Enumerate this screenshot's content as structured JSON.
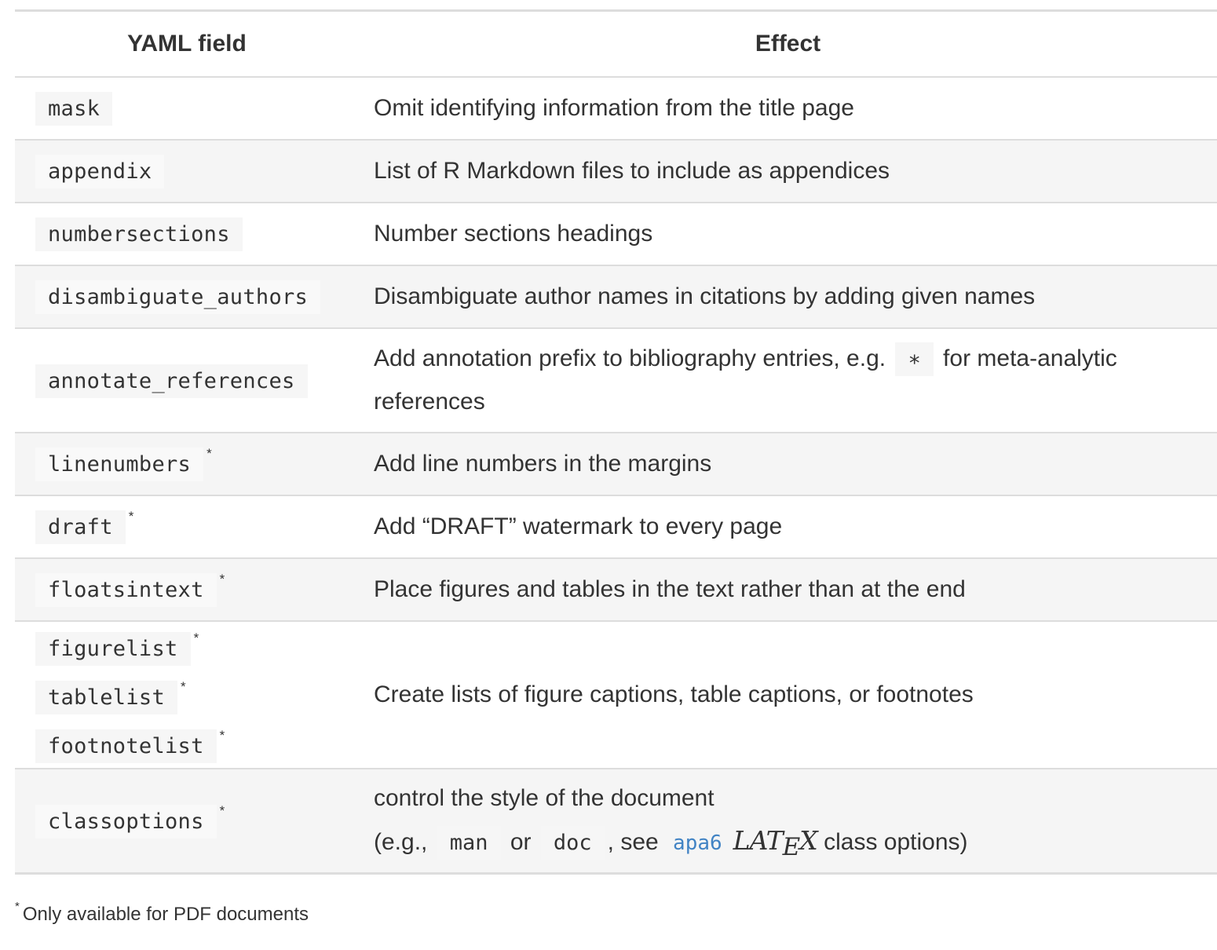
{
  "table": {
    "headers": [
      "YAML field",
      "Effect"
    ],
    "rows": [
      {
        "fields": [
          "mask"
        ],
        "effect": "Omit identifying information from the title page"
      },
      {
        "fields": [
          "appendix"
        ],
        "effect": "List of R Markdown files to include as appendices"
      },
      {
        "fields": [
          "numbersections"
        ],
        "effect": "Number sections headings"
      },
      {
        "fields": [
          "disambiguate_authors"
        ],
        "effect": "Disambiguate author names in citations by adding given names"
      },
      {
        "fields": [
          "annotate_references"
        ],
        "effect_prefix": "Add annotation prefix to bibliography entries, e.g.",
        "effect_code": "∗",
        "effect_suffix": "for meta-analytic references"
      },
      {
        "fields": [
          "linenumbers"
        ],
        "star": "*",
        "effect": "Add line numbers in the margins"
      },
      {
        "fields": [
          "draft"
        ],
        "star": "*",
        "effect": "Add “DRAFT” watermark to every page"
      },
      {
        "fields": [
          "floatsintext"
        ],
        "star": "*",
        "effect": "Place figures and tables in the text rather than at the end"
      },
      {
        "fields": [
          "figurelist",
          "tablelist",
          "footnotelist"
        ],
        "star": "*",
        "effect": "Create lists of figure captions, table captions, or footnotes"
      },
      {
        "fields": [
          "classoptions"
        ],
        "star": "*",
        "effect_line1": "control the style of the document",
        "effect_line2_a": "(e.g.,",
        "effect_code1": "man",
        "effect_line2_b": "or",
        "effect_code2": "doc",
        "effect_line2_c": ", see",
        "effect_link": "apa6",
        "effect_latex_a": "LAT",
        "effect_latex_e": "E",
        "effect_latex_x": "X",
        "effect_line2_d": "class options)"
      }
    ]
  },
  "footnote": {
    "marker": "*",
    "text": "Only available for PDF documents"
  }
}
